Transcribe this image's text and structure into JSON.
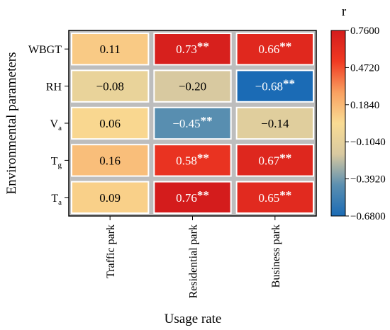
{
  "chart_data": {
    "type": "heatmap",
    "xlabel": "Usage rate",
    "ylabel": "Environmental parameters",
    "x_categories": [
      "Traffic park",
      "Residential park",
      "Business park"
    ],
    "y_categories": [
      {
        "base": "WBGT",
        "sub": ""
      },
      {
        "base": "RH",
        "sub": ""
      },
      {
        "base": "V",
        "sub": "a"
      },
      {
        "base": "T",
        "sub": "g"
      },
      {
        "base": "T",
        "sub": "a"
      }
    ],
    "values": [
      [
        0.11,
        0.73,
        0.66
      ],
      [
        -0.08,
        -0.2,
        -0.68
      ],
      [
        0.06,
        -0.45,
        -0.14
      ],
      [
        0.16,
        0.58,
        0.67
      ],
      [
        0.09,
        0.76,
        0.65
      ]
    ],
    "labels": [
      [
        "0.11",
        "0.73",
        "0.66"
      ],
      [
        "−0.08",
        "−0.20",
        "−0.68"
      ],
      [
        "0.06",
        "−0.45",
        "−0.14"
      ],
      [
        "0.16",
        "0.58",
        "0.67"
      ],
      [
        "0.09",
        "0.76",
        "0.65"
      ]
    ],
    "significance": [
      [
        "",
        "**",
        "**"
      ],
      [
        "",
        "",
        "**"
      ],
      [
        "",
        "**",
        ""
      ],
      [
        "",
        "**",
        "**"
      ],
      [
        "",
        "**",
        "**"
      ]
    ],
    "colorbar": {
      "title": "r",
      "range": [
        -0.68,
        0.76
      ],
      "ticks": [
        0.76,
        0.472,
        0.184,
        -0.104,
        -0.392,
        -0.68
      ],
      "tick_labels": [
        "0.7600",
        "0.4720",
        "0.1840",
        "−0.1040",
        "−0.3920",
        "−0.6800"
      ],
      "colormap": [
        "#1b6bb5",
        "#5b8fb0",
        "#d8c9a0",
        "#f9dc94",
        "#f9a060",
        "#f03a22",
        "#d41c1c"
      ]
    },
    "grid": false
  }
}
